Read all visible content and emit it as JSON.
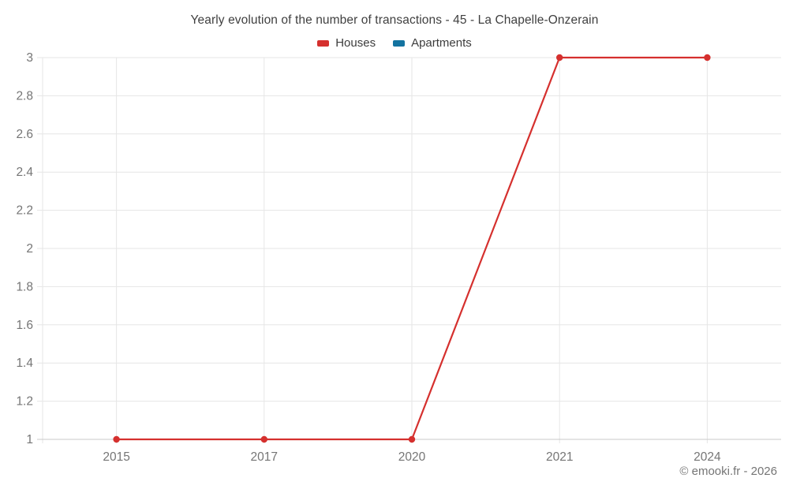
{
  "chart_data": {
    "type": "line",
    "title": "Yearly evolution of the number of transactions - 45 - La Chapelle-Onzerain",
    "categories": [
      "2015",
      "2017",
      "2020",
      "2021",
      "2024"
    ],
    "series": [
      {
        "name": "Houses",
        "color": "#d5302e",
        "values": [
          1,
          1,
          1,
          3,
          3
        ]
      },
      {
        "name": "Apartments",
        "color": "#1373a0",
        "values": []
      }
    ],
    "xlabel": "",
    "ylabel": "",
    "ylim": [
      1,
      3
    ],
    "yticks": [
      1,
      1.2,
      1.4,
      1.6,
      1.8,
      2,
      2.2,
      2.4,
      2.6,
      2.8,
      3
    ],
    "ytick_labels": [
      "1",
      "1.2",
      "1.4",
      "1.6",
      "1.8",
      "2",
      "2.2",
      "2.4",
      "2.6",
      "2.8",
      "3"
    ],
    "grid": true,
    "legend_position": "top"
  },
  "legend": {
    "items": [
      {
        "label": "Houses",
        "color": "#d5302e"
      },
      {
        "label": "Apartments",
        "color": "#1373a0"
      }
    ]
  },
  "copyright": "© emooki.fr - 2026",
  "colors": {
    "grid": "#e6e6e6",
    "axis_baseline": "#c9c9c9",
    "tick_text": "#757575",
    "title_text": "#3f3f3f",
    "legend_text": "#3c3c3c",
    "background": "#ffffff"
  }
}
